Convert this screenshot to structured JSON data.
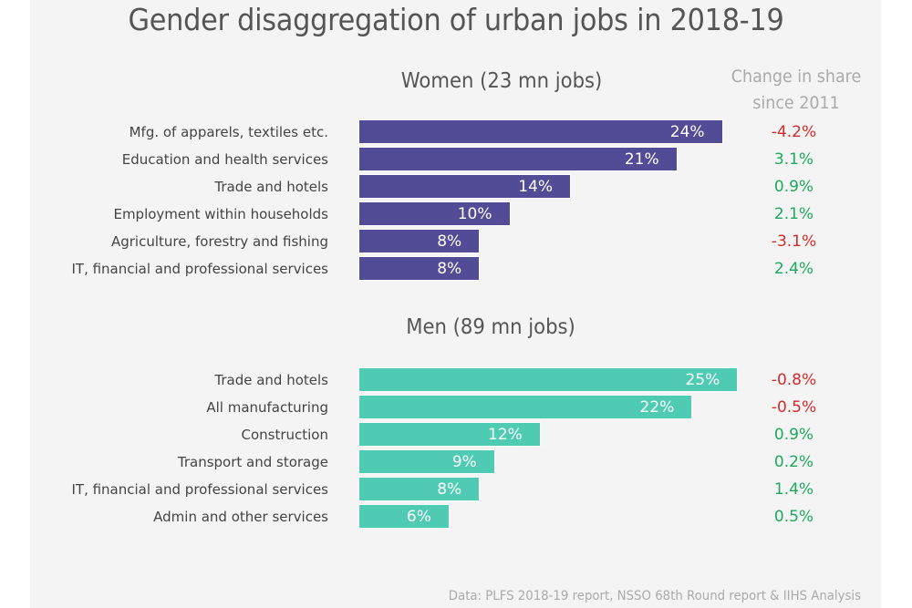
{
  "chart_data": {
    "type": "bar",
    "orientation": "horizontal",
    "title": "Gender disaggregation of urban jobs in 2018-19",
    "change_column_header": "Change in share since 2011",
    "change_column_header_lines": [
      "Change in share",
      "since 2011"
    ],
    "value_unit": "% share of jobs",
    "xlim": [
      0,
      25
    ],
    "grid": false,
    "legend": "none",
    "panels": [
      {
        "name": "Women (23 mn jobs)",
        "color": "#524C97",
        "categories": [
          "Mfg. of apparels, textiles etc.",
          "Education and health services",
          "Trade and hotels",
          "Employment within households",
          "Agriculture, forestry and fishing",
          "IT, financial and professional services"
        ],
        "values": [
          24,
          21,
          14,
          10,
          8,
          8
        ],
        "labels": [
          "24%",
          "21%",
          "14%",
          "10%",
          "8%",
          "8%"
        ],
        "change_since_2011": [
          -4.2,
          3.1,
          0.9,
          2.1,
          -3.1,
          2.4
        ],
        "change_labels": [
          "-4.2%",
          "3.1%",
          "0.9%",
          "2.1%",
          "-3.1%",
          "2.4%"
        ]
      },
      {
        "name": "Men (89 mn jobs)",
        "color": "#4FCBB4",
        "categories": [
          "Trade and hotels",
          "All manufacturing",
          "Construction",
          "Transport and storage",
          "IT, financial and professional services",
          "Admin and other services"
        ],
        "values": [
          25,
          22,
          12,
          9,
          8,
          6
        ],
        "labels": [
          "25%",
          "22%",
          "12%",
          "9%",
          "8%",
          "6%"
        ],
        "change_since_2011": [
          -0.8,
          -0.5,
          0.9,
          0.2,
          1.4,
          0.5
        ],
        "change_labels": [
          "-0.8%",
          "-0.5%",
          "0.9%",
          "0.2%",
          "1.4%",
          "0.5%"
        ]
      }
    ],
    "source": "Data: PLFS 2018-19 report, NSSO 68th Round report & IIHS Analysis"
  },
  "colors": {
    "positive_change": "#1DAA5C",
    "negative_change": "#D42B2B",
    "women_bar": "#524C97",
    "men_bar": "#4FCBB4"
  }
}
